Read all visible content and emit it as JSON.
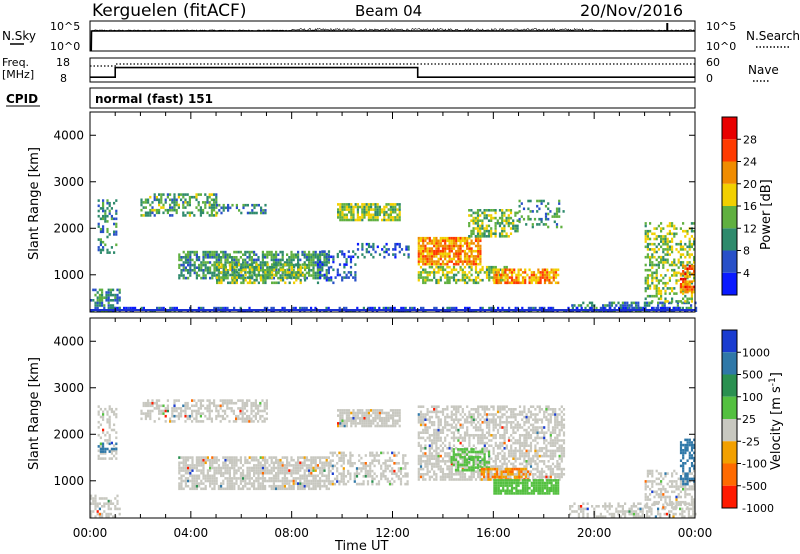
{
  "header": {
    "station": "Kerguelen (fitACF)",
    "beam": "Beam 04",
    "date": "20/Nov/2016"
  },
  "labels": {
    "nsky": "N.Sky",
    "nsearch": "N.Search",
    "freq_line1": "Freq.",
    "freq_line2": "[MHz]",
    "nave": "Nave",
    "cpid": "CPID",
    "cpid_value": "normal (fast) 151",
    "nsky_tick_top": "10^5",
    "nsky_tick_bottom": "10^0",
    "nsearch_tick_top": "10^5",
    "nsearch_tick_bottom": "10^0",
    "freq_tick_top": "18",
    "freq_tick_bottom": "8",
    "nave_tick_top": "60",
    "nave_tick_bottom": "0",
    "xlabel": "Time UT"
  },
  "colors": {
    "frame": "#000000",
    "ground_scatter": "#c8c8c0"
  },
  "chart_data": [
    {
      "type": "line",
      "name_panel": "noise",
      "series_left": "N.Sky",
      "series_right": "N.Search",
      "x_hours": [
        0,
        0.05,
        0.06,
        24
      ],
      "values": [
        1,
        1,
        100000,
        100000
      ],
      "spike_at_hour": 22.9,
      "ylim": [
        1,
        100000
      ]
    },
    {
      "type": "line",
      "name_panel": "frequency",
      "series_left": "Freq. [MHz]",
      "series_right": "Nave",
      "freq_x_hours": [
        0,
        1.0,
        1.0,
        13.0,
        13.0,
        24
      ],
      "freq_values": [
        10,
        10,
        14,
        14,
        10,
        10
      ],
      "nave_x_hours": [
        0,
        1.0,
        1.0,
        24
      ],
      "nave_values": [
        40,
        40,
        45,
        45
      ],
      "freq_ylim": [
        8,
        18
      ],
      "nave_ylim": [
        0,
        60
      ]
    },
    {
      "type": "heatmap",
      "title": "Power [dB]",
      "ylabel": "Slant Range [km]",
      "xlabel": "Time UT",
      "xlim_hours": [
        0,
        24
      ],
      "ylim_km": [
        200,
        4500
      ],
      "x_ticks": [
        "00:00",
        "04:00",
        "08:00",
        "12:00",
        "16:00",
        "20:00",
        "00:00"
      ],
      "y_ticks": [
        1000,
        2000,
        3000,
        4000
      ],
      "colorbar_ticks": [
        4,
        8,
        12,
        16,
        20,
        24,
        28
      ],
      "colorbar_colors": [
        "#0a1aff",
        "#2850c8",
        "#2e8a6c",
        "#60b040",
        "#f2d000",
        "#f08c00",
        "#ff3a00",
        "#e80000"
      ],
      "regions": [
        {
          "t0": 0.0,
          "t1": 1.2,
          "r0": 200,
          "r1": 700,
          "p": 10,
          "density": 0.6
        },
        {
          "t0": 0.3,
          "t1": 1.0,
          "r0": 1450,
          "r1": 2600,
          "p": 10,
          "density": 0.4
        },
        {
          "t0": 2.0,
          "t1": 5.0,
          "r0": 2250,
          "r1": 2700,
          "p": 12,
          "density": 0.5
        },
        {
          "t0": 5.0,
          "t1": 7.0,
          "r0": 2300,
          "r1": 2500,
          "p": 9,
          "density": 0.4
        },
        {
          "t0": 3.5,
          "t1": 9.5,
          "r0": 900,
          "r1": 1500,
          "p": 11,
          "density": 0.7
        },
        {
          "t0": 5.0,
          "t1": 8.5,
          "r0": 800,
          "r1": 1200,
          "p": 14,
          "density": 0.6
        },
        {
          "t0": 9.0,
          "t1": 10.5,
          "r0": 800,
          "r1": 1500,
          "p": 6,
          "density": 0.3
        },
        {
          "t0": 9.8,
          "t1": 12.3,
          "r0": 2150,
          "r1": 2500,
          "p": 15,
          "density": 0.8
        },
        {
          "t0": 10.5,
          "t1": 12.6,
          "r0": 1350,
          "r1": 1650,
          "p": 7,
          "density": 0.3
        },
        {
          "t0": 13.0,
          "t1": 15.5,
          "r0": 1200,
          "r1": 1800,
          "p": 22,
          "density": 0.85
        },
        {
          "t0": 13.0,
          "t1": 16.5,
          "r0": 800,
          "r1": 1150,
          "p": 15,
          "density": 0.6
        },
        {
          "t0": 15.0,
          "t1": 17.0,
          "r0": 1800,
          "r1": 2400,
          "p": 14,
          "density": 0.55
        },
        {
          "t0": 16.0,
          "t1": 18.6,
          "r0": 800,
          "r1": 1100,
          "p": 22,
          "density": 0.75
        },
        {
          "t0": 17.0,
          "t1": 18.8,
          "r0": 2000,
          "r1": 2600,
          "p": 11,
          "density": 0.3
        },
        {
          "t0": 19.0,
          "t1": 24.0,
          "r0": 200,
          "r1": 400,
          "p": 9,
          "density": 0.45
        },
        {
          "t0": 22.0,
          "t1": 24.0,
          "r0": 400,
          "r1": 2100,
          "p": 15,
          "density": 0.45
        },
        {
          "t0": 23.4,
          "t1": 24.0,
          "r0": 600,
          "r1": 1200,
          "p": 24,
          "density": 0.7
        },
        {
          "t0": 0.0,
          "t1": 24.0,
          "r0": 200,
          "r1": 300,
          "p": 5,
          "density": 0.5
        }
      ]
    },
    {
      "type": "heatmap",
      "title": "Velocity [m s^-1]",
      "ylabel": "Slant Range [km]",
      "xlabel": "Time UT",
      "xlim_hours": [
        0,
        24
      ],
      "ylim_km": [
        200,
        4500
      ],
      "x_ticks": [
        "00:00",
        "04:00",
        "08:00",
        "12:00",
        "16:00",
        "20:00",
        "00:00"
      ],
      "y_ticks": [
        1000,
        2000,
        3000,
        4000
      ],
      "colorbar_ticks": [
        "1000",
        "500",
        "100",
        "25",
        "-25",
        "-100",
        "-500",
        "-1000"
      ],
      "colorbar_colors": [
        "#1a3cd0",
        "#2f78a8",
        "#2a9050",
        "#54c040",
        "#c8c8c0",
        "#f2a000",
        "#ff6a00",
        "#ff1a00"
      ],
      "regions": [
        {
          "t0": 0.0,
          "t1": 1.2,
          "r0": 200,
          "r1": 700,
          "v": "gs",
          "density": 0.5
        },
        {
          "t0": 0.3,
          "t1": 1.0,
          "r0": 1450,
          "r1": 2600,
          "v": "gs",
          "density": 0.4
        },
        {
          "t0": 0.3,
          "t1": 1.0,
          "r0": 1600,
          "r1": 1800,
          "v": 150,
          "density": 0.5
        },
        {
          "t0": 2.0,
          "t1": 7.0,
          "r0": 2250,
          "r1": 2700,
          "v": "gs",
          "density": 0.5
        },
        {
          "t0": 3.5,
          "t1": 9.5,
          "r0": 800,
          "r1": 1500,
          "v": "gs",
          "density": 0.75
        },
        {
          "t0": 9.8,
          "t1": 12.3,
          "r0": 2150,
          "r1": 2500,
          "v": "gs",
          "density": 0.8
        },
        {
          "t0": 9.5,
          "t1": 12.6,
          "r0": 900,
          "r1": 1600,
          "v": "gs",
          "density": 0.5
        },
        {
          "t0": 13.0,
          "t1": 18.8,
          "r0": 1000,
          "r1": 2600,
          "v": "gs",
          "density": 0.6
        },
        {
          "t0": 14.3,
          "t1": 15.8,
          "r0": 1200,
          "r1": 1700,
          "v": 200,
          "density": 0.5
        },
        {
          "t0": 15.5,
          "t1": 17.5,
          "r0": 1000,
          "r1": 1250,
          "v": -80,
          "density": 0.75
        },
        {
          "t0": 16.0,
          "t1": 18.6,
          "r0": 700,
          "r1": 1000,
          "v": 180,
          "density": 0.85
        },
        {
          "t0": 19.0,
          "t1": 24.0,
          "r0": 200,
          "r1": 500,
          "v": "gs",
          "density": 0.45
        },
        {
          "t0": 22.0,
          "t1": 24.0,
          "r0": 400,
          "r1": 1200,
          "v": "gs",
          "density": 0.45
        },
        {
          "t0": 23.4,
          "t1": 24.0,
          "r0": 900,
          "r1": 1900,
          "v": 300,
          "density": 0.6
        }
      ]
    }
  ]
}
